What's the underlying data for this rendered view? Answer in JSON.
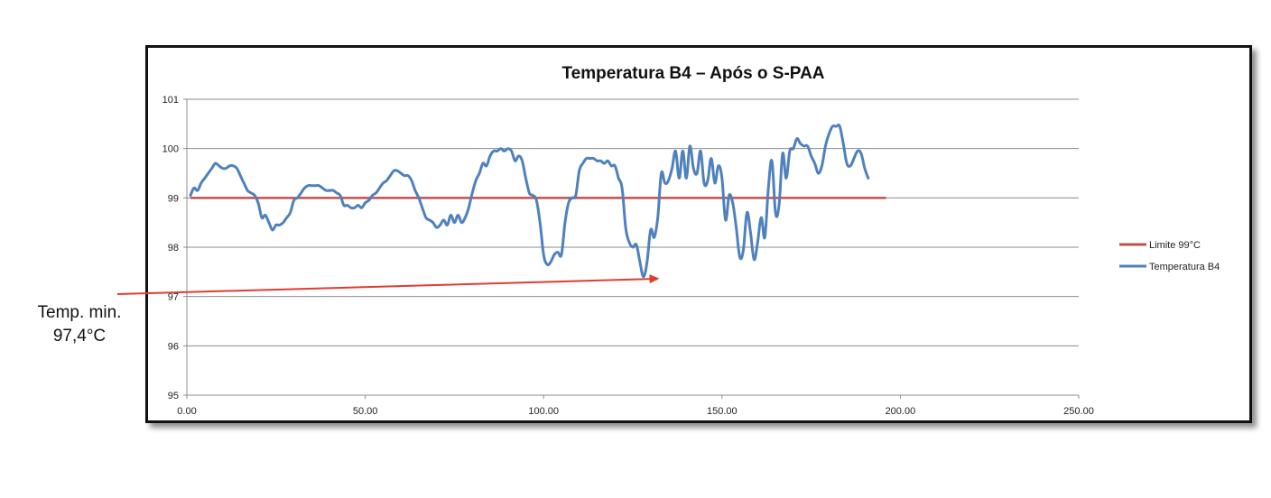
{
  "chart_data": {
    "type": "line",
    "title": "Temperatura B4 – Após o S-PAA",
    "xlabel": "",
    "ylabel": "",
    "xlim": [
      0,
      250
    ],
    "ylim": [
      95,
      101
    ],
    "x_ticks": [
      "0.00",
      "50.00",
      "100.00",
      "150.00",
      "200.00",
      "250.00"
    ],
    "y_ticks": [
      "95",
      "96",
      "97",
      "98",
      "99",
      "100",
      "101"
    ],
    "grid": "horizontal",
    "legend_position": "right",
    "series": [
      {
        "name": "Limite 99°C",
        "color": "#c0504d",
        "points": [
          [
            1,
            99
          ],
          [
            196,
            99
          ]
        ]
      },
      {
        "name": "Temperatura B4",
        "color": "#4f81bd",
        "points": [
          [
            1,
            99.05
          ],
          [
            2,
            99.2
          ],
          [
            3,
            99.15
          ],
          [
            4,
            99.3
          ],
          [
            5,
            99.4
          ],
          [
            6,
            99.5
          ],
          [
            7,
            99.6
          ],
          [
            8,
            99.7
          ],
          [
            9,
            99.65
          ],
          [
            10,
            99.6
          ],
          [
            11,
            99.6
          ],
          [
            12,
            99.65
          ],
          [
            13,
            99.65
          ],
          [
            14,
            99.6
          ],
          [
            15,
            99.45
          ],
          [
            16,
            99.3
          ],
          [
            17,
            99.15
          ],
          [
            18,
            99.1
          ],
          [
            19,
            99.05
          ],
          [
            20,
            98.9
          ],
          [
            21,
            98.6
          ],
          [
            22,
            98.65
          ],
          [
            23,
            98.5
          ],
          [
            24,
            98.35
          ],
          [
            25,
            98.45
          ],
          [
            26,
            98.45
          ],
          [
            27,
            98.5
          ],
          [
            28,
            98.6
          ],
          [
            29,
            98.7
          ],
          [
            30,
            98.95
          ],
          [
            31,
            99.0
          ],
          [
            32,
            99.1
          ],
          [
            33,
            99.2
          ],
          [
            34,
            99.25
          ],
          [
            35,
            99.25
          ],
          [
            36,
            99.25
          ],
          [
            37,
            99.25
          ],
          [
            38,
            99.2
          ],
          [
            39,
            99.15
          ],
          [
            40,
            99.15
          ],
          [
            41,
            99.15
          ],
          [
            42,
            99.1
          ],
          [
            43,
            99.05
          ],
          [
            44,
            98.85
          ],
          [
            45,
            98.85
          ],
          [
            46,
            98.8
          ],
          [
            47,
            98.8
          ],
          [
            48,
            98.85
          ],
          [
            49,
            98.8
          ],
          [
            50,
            98.9
          ],
          [
            51,
            98.95
          ],
          [
            52,
            99.05
          ],
          [
            53,
            99.1
          ],
          [
            54,
            99.2
          ],
          [
            55,
            99.3
          ],
          [
            56,
            99.35
          ],
          [
            57,
            99.45
          ],
          [
            58,
            99.55
          ],
          [
            59,
            99.55
          ],
          [
            60,
            99.5
          ],
          [
            61,
            99.45
          ],
          [
            62,
            99.45
          ],
          [
            63,
            99.35
          ],
          [
            64,
            99.15
          ],
          [
            65,
            99.0
          ],
          [
            66,
            98.8
          ],
          [
            67,
            98.6
          ],
          [
            68,
            98.55
          ],
          [
            69,
            98.5
          ],
          [
            70,
            98.4
          ],
          [
            71,
            98.45
          ],
          [
            72,
            98.55
          ],
          [
            73,
            98.45
          ],
          [
            74,
            98.65
          ],
          [
            75,
            98.5
          ],
          [
            76,
            98.65
          ],
          [
            77,
            98.5
          ],
          [
            78,
            98.6
          ],
          [
            79,
            98.8
          ],
          [
            80,
            99.1
          ],
          [
            81,
            99.35
          ],
          [
            82,
            99.5
          ],
          [
            83,
            99.7
          ],
          [
            84,
            99.65
          ],
          [
            85,
            99.85
          ],
          [
            86,
            99.95
          ],
          [
            87,
            99.95
          ],
          [
            88,
            100.0
          ],
          [
            89,
            99.95
          ],
          [
            90,
            100.0
          ],
          [
            91,
            99.95
          ],
          [
            92,
            99.75
          ],
          [
            93,
            99.85
          ],
          [
            94,
            99.75
          ],
          [
            95,
            99.4
          ],
          [
            96,
            99.1
          ],
          [
            97,
            99.05
          ],
          [
            98,
            98.95
          ],
          [
            99,
            98.5
          ],
          [
            100,
            97.85
          ],
          [
            101,
            97.65
          ],
          [
            102,
            97.7
          ],
          [
            103,
            97.85
          ],
          [
            104,
            97.9
          ],
          [
            105,
            97.85
          ],
          [
            106,
            98.5
          ],
          [
            107,
            98.9
          ],
          [
            108,
            99.0
          ],
          [
            109,
            99.05
          ],
          [
            110,
            99.55
          ],
          [
            111,
            99.7
          ],
          [
            112,
            99.8
          ],
          [
            113,
            99.8
          ],
          [
            114,
            99.8
          ],
          [
            115,
            99.75
          ],
          [
            116,
            99.75
          ],
          [
            117,
            99.7
          ],
          [
            118,
            99.75
          ],
          [
            119,
            99.65
          ],
          [
            120,
            99.65
          ],
          [
            121,
            99.4
          ],
          [
            122,
            99.2
          ],
          [
            123,
            98.4
          ],
          [
            124,
            98.1
          ],
          [
            125,
            98.0
          ],
          [
            126,
            98.05
          ],
          [
            127,
            97.7
          ],
          [
            128,
            97.4
          ],
          [
            129,
            97.7
          ],
          [
            130,
            98.35
          ],
          [
            131,
            98.2
          ],
          [
            132,
            98.6
          ],
          [
            133,
            99.5
          ],
          [
            134,
            99.3
          ],
          [
            135,
            99.35
          ],
          [
            136,
            99.6
          ],
          [
            137,
            99.95
          ],
          [
            138,
            99.4
          ],
          [
            139,
            99.95
          ],
          [
            140,
            99.4
          ],
          [
            141,
            100.05
          ],
          [
            142,
            99.6
          ],
          [
            143,
            99.5
          ],
          [
            144,
            99.95
          ],
          [
            145,
            99.3
          ],
          [
            146,
            99.35
          ],
          [
            147,
            99.8
          ],
          [
            148,
            99.3
          ],
          [
            149,
            99.65
          ],
          [
            150,
            99.4
          ],
          [
            151,
            98.55
          ],
          [
            152,
            99.05
          ],
          [
            153,
            98.9
          ],
          [
            154,
            98.4
          ],
          [
            155,
            97.8
          ],
          [
            156,
            97.95
          ],
          [
            157,
            98.7
          ],
          [
            158,
            98.3
          ],
          [
            159,
            97.75
          ],
          [
            160,
            98.1
          ],
          [
            161,
            98.6
          ],
          [
            162,
            98.2
          ],
          [
            163,
            99.2
          ],
          [
            164,
            99.75
          ],
          [
            165,
            98.7
          ],
          [
            166,
            98.85
          ],
          [
            167,
            99.9
          ],
          [
            168,
            99.4
          ],
          [
            169,
            99.95
          ],
          [
            170,
            100.0
          ],
          [
            171,
            100.2
          ],
          [
            172,
            100.1
          ],
          [
            173,
            100.05
          ],
          [
            174,
            100.05
          ],
          [
            175,
            99.85
          ],
          [
            176,
            99.7
          ],
          [
            177,
            99.5
          ],
          [
            178,
            99.65
          ],
          [
            179,
            100.05
          ],
          [
            180,
            100.3
          ],
          [
            181,
            100.45
          ],
          [
            182,
            100.45
          ],
          [
            183,
            100.45
          ],
          [
            184,
            100.1
          ],
          [
            185,
            99.7
          ],
          [
            186,
            99.65
          ],
          [
            187,
            99.8
          ],
          [
            188,
            99.95
          ],
          [
            189,
            99.9
          ],
          [
            190,
            99.6
          ],
          [
            191,
            99.4
          ]
        ]
      }
    ],
    "annotations": [
      {
        "text_line1": "Temp. min.",
        "text_line2": "97,4°C",
        "points_to": [
          134,
          97.4
        ],
        "arrow_color": "#e03c31"
      }
    ]
  }
}
